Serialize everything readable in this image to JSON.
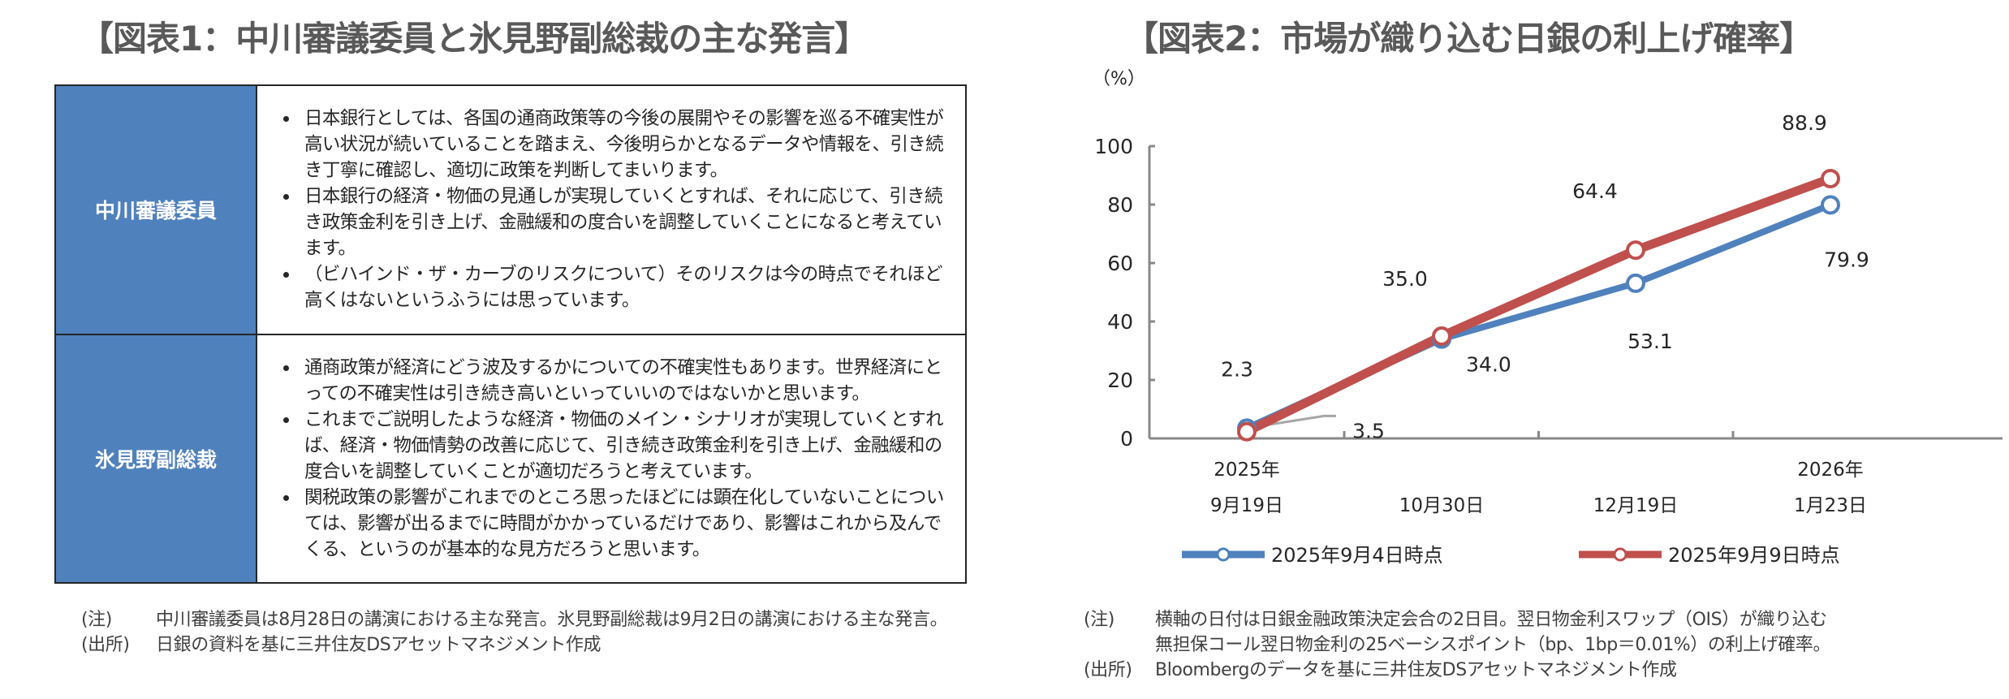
{
  "figure1": {
    "title": "【図表1：中川審議委員と氷見野副総裁の主な発言】",
    "rows": [
      {
        "speaker": "中川審議委員",
        "bullets": [
          "日本銀行としては、各国の通商政策等の今後の展開やその影響を巡る不確実性が高い状況が続いていることを踏まえ、今後明らかとなるデータや情報を、引き続き丁寧に確認し、適切に政策を判断してまいります。",
          "日本銀行の経済・物価の見通しが実現していくとすれば、それに応じて、引き続き政策金利を引き上げ、金融緩和の度合いを調整していくことになると考えています。",
          "（ビハインド・ザ・カーブのリスクについて）そのリスクは今の時点でそれほど高くはないというふうには思っています。"
        ]
      },
      {
        "speaker": "氷見野副総裁",
        "bullets": [
          "通商政策が経済にどう波及するかについての不確実性もあります。世界経済にとっての不確実性は引き続き高いといっていいのではないかと思います。",
          "これまでご説明したような経済・物価のメイン・シナリオが実現していくとすれば、経済・物価情勢の改善に応じて、引き続き政策金利を引き上げ、金融緩和の度合いを調整していくことが適切だろうと考えています。",
          "関税政策の影響がこれまでのところ思ったほどには顕在化していないことについては、影響が出るまでに時間がかかっているだけであり、影響はこれから及んでくる、というのが基本的な見方だろうと思います。"
        ]
      }
    ],
    "note_label": "(注)",
    "note": "中川審議委員は8月28日の講演における主な発言。氷見野副総裁は9月2日の講演における主な発言。",
    "source_label": "(出所)",
    "source": "日銀の資料を基に三井住友DSアセットマネジメント作成",
    "header_color": "#4f81bd"
  },
  "figure2": {
    "title": "【図表2：市場が織り込む日銀の利上げ確率】",
    "note_label": "(注)",
    "note_line1": "横軸の日付は日銀金融政策決定会合の2日目。翌日物金利スワップ（OIS）が織り込む",
    "note_line2": "無担保コール翌日物金利の25ベーシスポイント（bp、1bp＝0.01%）の利上げ確率。",
    "source_label": "(出所)",
    "source": "Bloombergのデータを基に三井住友DSアセットマネジメント作成"
  },
  "chart_data": {
    "type": "line",
    "title": "【図表2：市場が織り込む日銀の利上げ確率】",
    "ylabel": "（%）",
    "ylim": [
      0,
      100
    ],
    "yticks": [
      0,
      20,
      40,
      60,
      80,
      100
    ],
    "grid": false,
    "legend_position": "bottom",
    "categories": [
      {
        "year": "2025年",
        "date": "9月19日"
      },
      {
        "year": "",
        "date": "10月30日"
      },
      {
        "year": "",
        "date": "12月19日"
      },
      {
        "year": "2026年",
        "date": "1月23日"
      }
    ],
    "series": [
      {
        "name": "2025年9月4日時点",
        "color": "#4f81bd",
        "values": [
          3.5,
          34.0,
          53.1,
          79.9
        ],
        "labels": [
          "3.5",
          "34.0",
          "53.1",
          "79.9"
        ]
      },
      {
        "name": "2025年9月9日時点",
        "color": "#c0504d",
        "values": [
          2.3,
          35.0,
          64.4,
          88.9
        ],
        "labels": [
          "2.3",
          "35.0",
          "64.4",
          "88.9"
        ]
      }
    ]
  }
}
